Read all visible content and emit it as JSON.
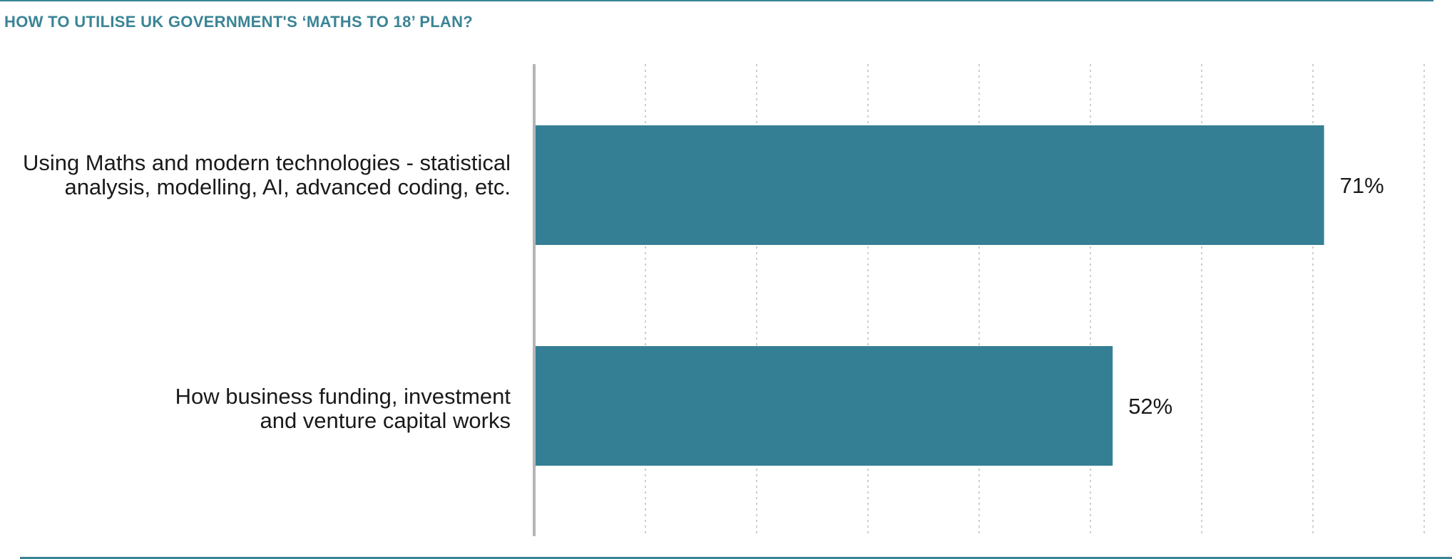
{
  "title": "HOW TO UTILISE UK GOVERNMENT'S ‘MATHS TO 18’ PLAN?",
  "colors": {
    "accent": "#3a8496",
    "bar": "#357f95",
    "axis": "#b5b5b5",
    "grid": "#bdbdbd"
  },
  "chart_data": {
    "type": "bar",
    "orientation": "horizontal",
    "title": "HOW TO UTILISE UK GOVERNMENT'S ‘MATHS TO 18’ PLAN?",
    "categories": [
      "Using Maths and modern technologies - statistical\nanalysis, modelling, AI, advanced coding, etc.",
      "How business funding, investment\nand venture capital works"
    ],
    "values": [
      71,
      52
    ],
    "value_labels": [
      "71%",
      "52%"
    ],
    "xlim": [
      0,
      80
    ],
    "grid": true,
    "legend": "none"
  }
}
